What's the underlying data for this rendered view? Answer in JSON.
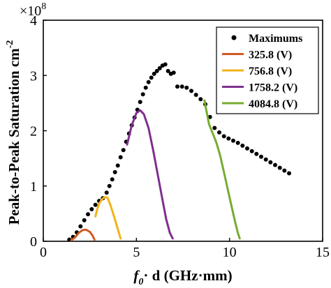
{
  "chart_data": {
    "type": "scatter",
    "xlabel": {
      "prefix": "f",
      "subscript": "0",
      "middle": "· d",
      "suffix": " (GHz·mm)"
    },
    "ylabel": {
      "main": "Peak-to-Peak Saturation cm",
      "superscript": "-2"
    },
    "y_exponent": {
      "base": "×10",
      "power": "8"
    },
    "xlim": [
      0,
      15
    ],
    "ylim": [
      0,
      4
    ],
    "xticks": [
      "0",
      "5",
      "10",
      "15"
    ],
    "yticks": [
      "0",
      "1",
      "2",
      "3",
      "4"
    ],
    "grid": false,
    "legend_position": "top-right",
    "series": [
      {
        "name": "Maximums",
        "style": "markers",
        "color": "#000000",
        "points": [
          [
            1.4,
            0.03
          ],
          [
            1.6,
            0.08
          ],
          [
            1.8,
            0.16
          ],
          [
            2.0,
            0.27
          ],
          [
            2.2,
            0.38
          ],
          [
            2.4,
            0.49
          ],
          [
            2.6,
            0.58
          ],
          [
            2.8,
            0.66
          ],
          [
            3.0,
            0.73
          ],
          [
            3.2,
            0.78
          ],
          [
            3.4,
            0.88
          ],
          [
            3.55,
            1.0
          ],
          [
            3.7,
            1.12
          ],
          [
            3.85,
            1.25
          ],
          [
            4.0,
            1.37
          ],
          [
            4.15,
            1.52
          ],
          [
            4.3,
            1.65
          ],
          [
            4.45,
            1.8
          ],
          [
            4.6,
            1.95
          ],
          [
            4.75,
            2.1
          ],
          [
            4.9,
            2.24
          ],
          [
            5.05,
            2.38
          ],
          [
            5.2,
            2.52
          ],
          [
            5.35,
            2.66
          ],
          [
            5.5,
            2.78
          ],
          [
            5.65,
            2.88
          ],
          [
            5.8,
            2.96
          ],
          [
            5.95,
            3.03
          ],
          [
            6.1,
            3.08
          ],
          [
            6.25,
            3.13
          ],
          [
            6.4,
            3.18
          ],
          [
            6.55,
            3.2
          ],
          [
            6.7,
            3.08
          ],
          [
            6.85,
            3.03
          ],
          [
            7.0,
            3.05
          ],
          [
            7.2,
            2.8
          ],
          [
            7.45,
            2.8
          ],
          [
            7.7,
            2.78
          ],
          [
            7.95,
            2.72
          ],
          [
            8.2,
            2.65
          ],
          [
            8.45,
            2.57
          ],
          [
            8.7,
            2.48
          ],
          [
            8.95,
            2.25
          ],
          [
            9.2,
            2.05
          ],
          [
            9.45,
            1.97
          ],
          [
            9.7,
            1.9
          ],
          [
            9.95,
            1.86
          ],
          [
            10.2,
            1.82
          ],
          [
            10.45,
            1.78
          ],
          [
            10.7,
            1.73
          ],
          [
            10.95,
            1.68
          ],
          [
            11.2,
            1.63
          ],
          [
            11.45,
            1.58
          ],
          [
            11.7,
            1.53
          ],
          [
            11.95,
            1.48
          ],
          [
            12.2,
            1.43
          ],
          [
            12.45,
            1.38
          ],
          [
            12.7,
            1.33
          ],
          [
            12.95,
            1.28
          ],
          [
            13.2,
            1.23
          ]
        ]
      },
      {
        "name": "325.8 (V)",
        "style": "line",
        "color": "#d05a24",
        "points": [
          [
            1.5,
            0.02
          ],
          [
            1.7,
            0.07
          ],
          [
            1.9,
            0.15
          ],
          [
            2.1,
            0.2
          ],
          [
            2.3,
            0.21
          ],
          [
            2.5,
            0.17
          ],
          [
            2.65,
            0.1
          ],
          [
            2.75,
            0.03
          ]
        ]
      },
      {
        "name": "756.8 (V)",
        "style": "line",
        "color": "#f2b21b",
        "points": [
          [
            2.8,
            0.45
          ],
          [
            2.9,
            0.58
          ],
          [
            3.0,
            0.68
          ],
          [
            3.15,
            0.76
          ],
          [
            3.3,
            0.8
          ],
          [
            3.45,
            0.79
          ],
          [
            3.6,
            0.66
          ],
          [
            3.8,
            0.45
          ],
          [
            4.0,
            0.22
          ],
          [
            4.15,
            0.05
          ]
        ]
      },
      {
        "name": "1758.2 (V)",
        "style": "line",
        "color": "#7f2f8e",
        "points": [
          [
            4.5,
            1.75
          ],
          [
            4.75,
            2.1
          ],
          [
            5.0,
            2.32
          ],
          [
            5.2,
            2.37
          ],
          [
            5.4,
            2.3
          ],
          [
            5.65,
            2.05
          ],
          [
            5.9,
            1.65
          ],
          [
            6.15,
            1.2
          ],
          [
            6.4,
            0.75
          ],
          [
            6.6,
            0.4
          ],
          [
            6.8,
            0.15
          ],
          [
            6.95,
            0.05
          ]
        ]
      },
      {
        "name": "4084.8 (V)",
        "style": "line",
        "color": "#76ac30",
        "points": [
          [
            8.65,
            2.55
          ],
          [
            8.9,
            2.12
          ],
          [
            9.1,
            1.95
          ],
          [
            9.3,
            1.78
          ],
          [
            9.5,
            1.55
          ],
          [
            9.7,
            1.25
          ],
          [
            9.9,
            0.95
          ],
          [
            10.1,
            0.65
          ],
          [
            10.3,
            0.35
          ],
          [
            10.45,
            0.15
          ],
          [
            10.55,
            0.05
          ]
        ]
      }
    ]
  }
}
